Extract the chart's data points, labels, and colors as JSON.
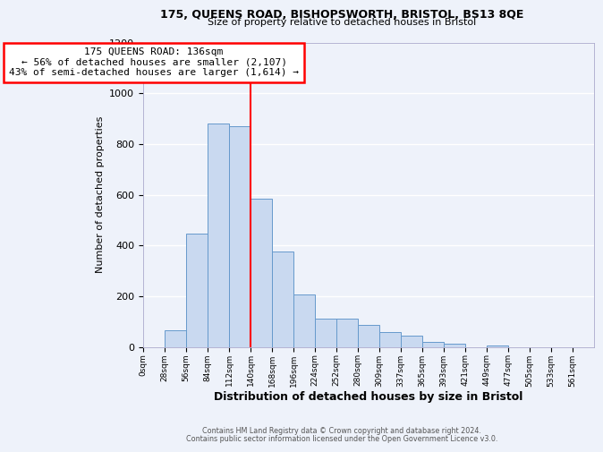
{
  "title1": "175, QUEENS ROAD, BISHOPSWORTH, BRISTOL, BS13 8QE",
  "title2": "Size of property relative to detached houses in Bristol",
  "xlabel": "Distribution of detached houses by size in Bristol",
  "ylabel": "Number of detached properties",
  "bin_labels": [
    "0sqm",
    "28sqm",
    "56sqm",
    "84sqm",
    "112sqm",
    "140sqm",
    "168sqm",
    "196sqm",
    "224sqm",
    "252sqm",
    "280sqm",
    "309sqm",
    "337sqm",
    "365sqm",
    "393sqm",
    "421sqm",
    "449sqm",
    "477sqm",
    "505sqm",
    "533sqm",
    "561sqm"
  ],
  "bar_values": [
    0,
    65,
    445,
    880,
    870,
    585,
    377,
    205,
    112,
    112,
    85,
    58,
    45,
    18,
    12,
    0,
    5,
    0,
    0,
    0,
    0
  ],
  "bar_color": "#c9d9f0",
  "bar_edge_color": "#6699cc",
  "vline_x": 5,
  "vline_color": "red",
  "annotation_title": "175 QUEENS ROAD: 136sqm",
  "annotation_line1": "← 56% of detached houses are smaller (2,107)",
  "annotation_line2": "43% of semi-detached houses are larger (1,614) →",
  "annotation_box_color": "#ffffff",
  "annotation_box_edge": "red",
  "ylim": [
    0,
    1200
  ],
  "yticks": [
    0,
    200,
    400,
    600,
    800,
    1000,
    1200
  ],
  "footer1": "Contains HM Land Registry data © Crown copyright and database right 2024.",
  "footer2": "Contains public sector information licensed under the Open Government Licence v3.0.",
  "bg_color": "#eef2fa"
}
